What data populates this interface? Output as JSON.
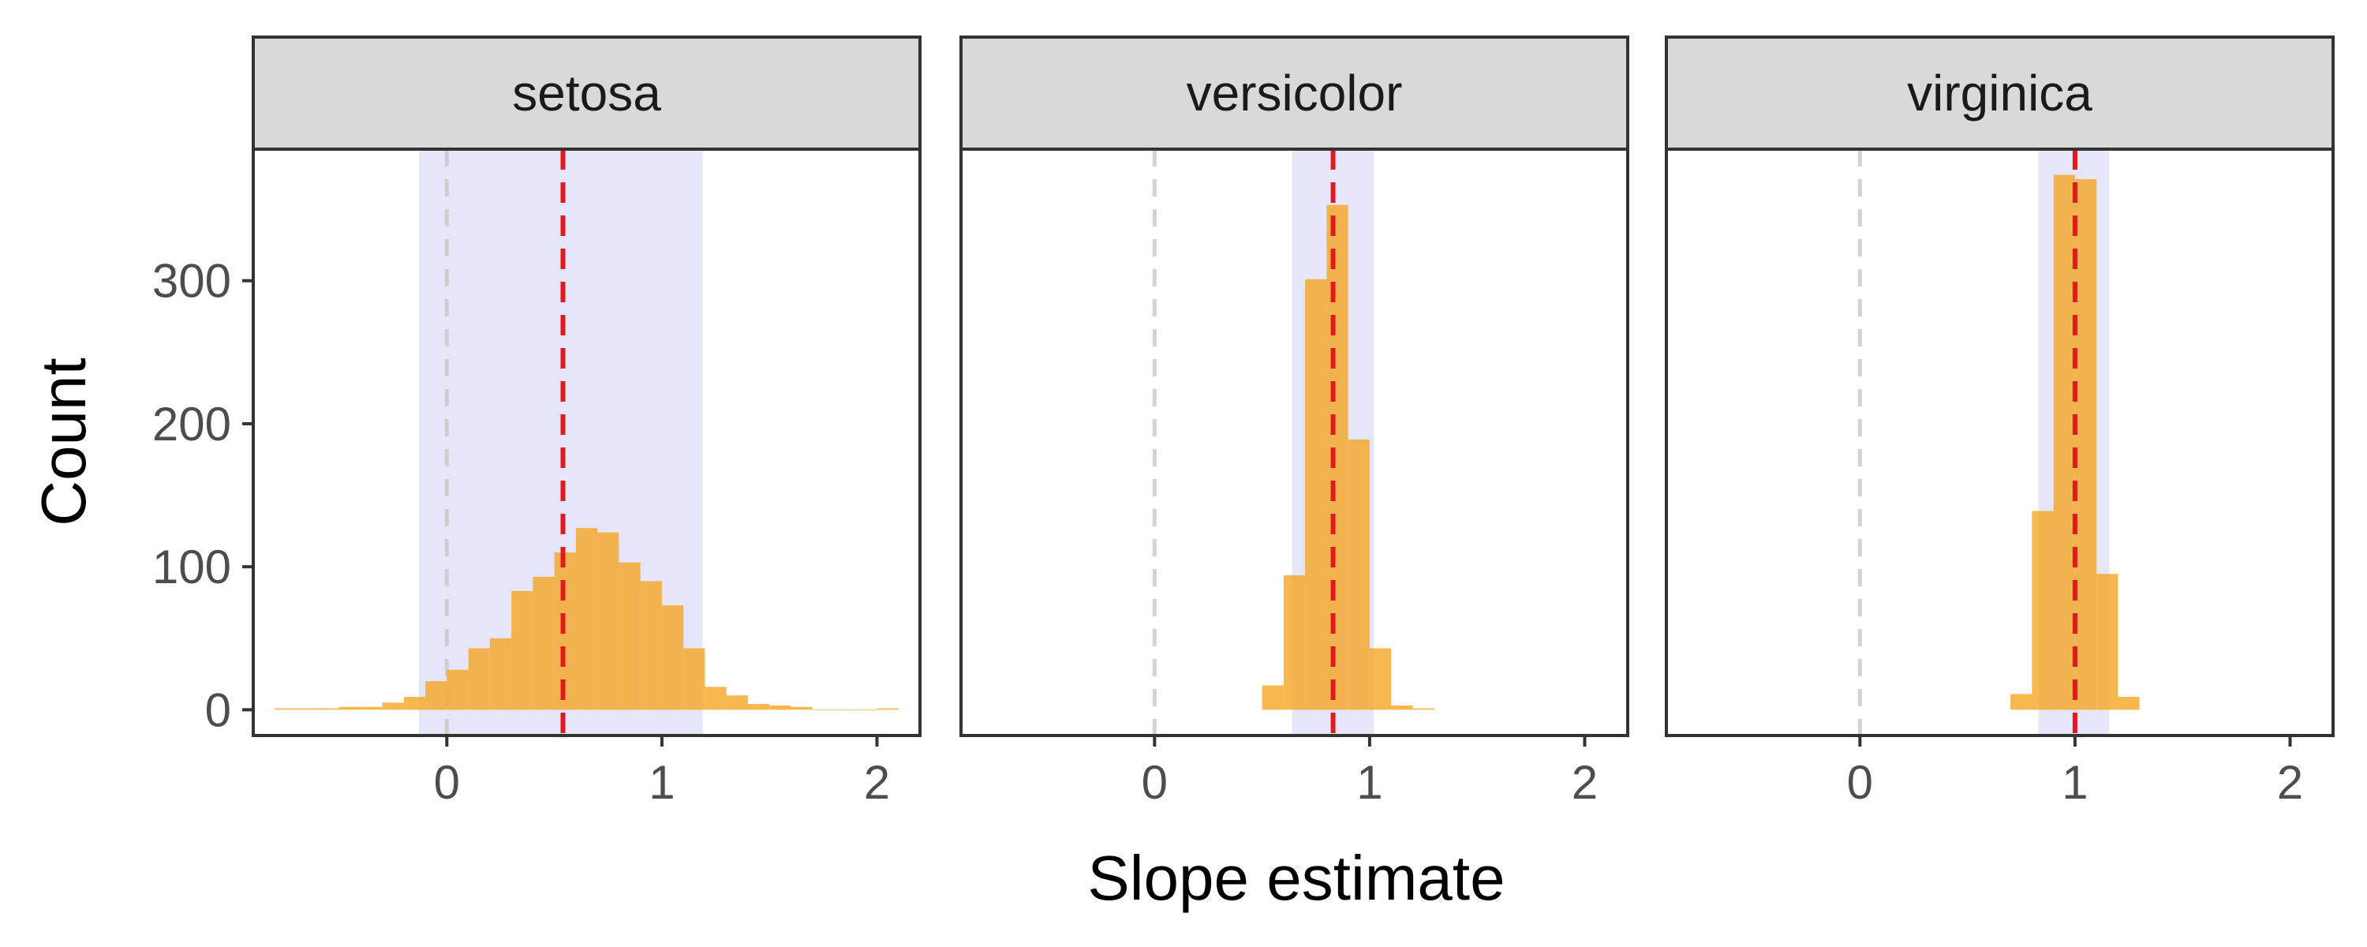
{
  "chart_data": {
    "type": "bar",
    "xlabel": "Slope estimate",
    "ylabel": "Count",
    "xlim": [
      -0.9,
      2.2
    ],
    "ylim": [
      -18,
      392
    ],
    "x_ticks": [
      0,
      1,
      2
    ],
    "y_ticks": [
      0,
      100,
      200,
      300
    ],
    "bin_width": 0.1,
    "colors": {
      "bar": "#f5a623",
      "bar_opacity": 0.8,
      "interval_band": "#e6e6fa",
      "estimate_line": "#e31a1c",
      "zero_line": "#cccccc",
      "strip_fill": "#d9d9d9",
      "panel_border": "#333333"
    },
    "panels": [
      {
        "strip": "setosa",
        "estimate": 0.54,
        "interval": [
          -0.13,
          1.19
        ],
        "bins": [
          [
            -0.8,
            1
          ],
          [
            -0.7,
            1
          ],
          [
            -0.6,
            1
          ],
          [
            -0.5,
            2
          ],
          [
            -0.4,
            2
          ],
          [
            -0.3,
            5
          ],
          [
            -0.2,
            9
          ],
          [
            -0.1,
            20
          ],
          [
            0.0,
            28
          ],
          [
            0.1,
            43
          ],
          [
            0.2,
            50
          ],
          [
            0.3,
            83
          ],
          [
            0.4,
            93
          ],
          [
            0.5,
            110
          ],
          [
            0.6,
            127
          ],
          [
            0.7,
            124
          ],
          [
            0.8,
            103
          ],
          [
            0.9,
            90
          ],
          [
            1.0,
            73
          ],
          [
            1.1,
            43
          ],
          [
            1.2,
            16
          ],
          [
            1.3,
            10
          ],
          [
            1.4,
            4
          ],
          [
            1.5,
            3
          ],
          [
            1.6,
            2
          ],
          [
            1.7,
            0
          ],
          [
            1.8,
            0
          ],
          [
            1.9,
            0
          ],
          [
            2.0,
            1
          ]
        ]
      },
      {
        "strip": "versicolor",
        "estimate": 0.83,
        "interval": [
          0.64,
          1.02
        ],
        "bins": [
          [
            0.5,
            17
          ],
          [
            0.6,
            94
          ],
          [
            0.7,
            301
          ],
          [
            0.8,
            353
          ],
          [
            0.9,
            189
          ],
          [
            1.0,
            43
          ],
          [
            1.1,
            3
          ],
          [
            1.2,
            1
          ]
        ]
      },
      {
        "strip": "virginica",
        "estimate": 1.0,
        "interval": [
          0.83,
          1.16
        ],
        "bins": [
          [
            0.7,
            11
          ],
          [
            0.8,
            139
          ],
          [
            0.9,
            374
          ],
          [
            1.0,
            371
          ],
          [
            1.1,
            95
          ],
          [
            1.2,
            9
          ]
        ]
      }
    ]
  }
}
